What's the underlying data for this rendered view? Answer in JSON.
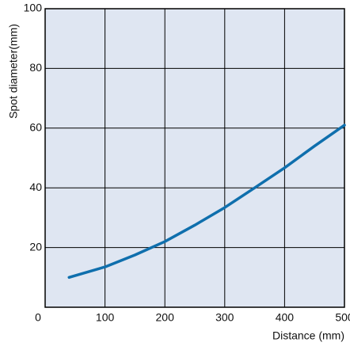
{
  "chart_data": {
    "type": "line",
    "xlabel": "Distance (mm)",
    "ylabel": "Spot diameter(mm)",
    "x": [
      40,
      100,
      150,
      200,
      250,
      300,
      350,
      400,
      450,
      500
    ],
    "series": [
      {
        "color": "#0f6fad",
        "values": [
          10,
          13.5,
          17.5,
          22,
          27.5,
          33.4,
          40,
          46.7,
          54,
          61
        ]
      }
    ],
    "xlim": [
      0,
      500
    ],
    "xticks": [
      0,
      100,
      200,
      300,
      400,
      500
    ],
    "ylim": [
      0,
      100
    ],
    "yticks": [
      20,
      40,
      60,
      80,
      100
    ],
    "grid": true,
    "background": "#dfe6f2"
  }
}
